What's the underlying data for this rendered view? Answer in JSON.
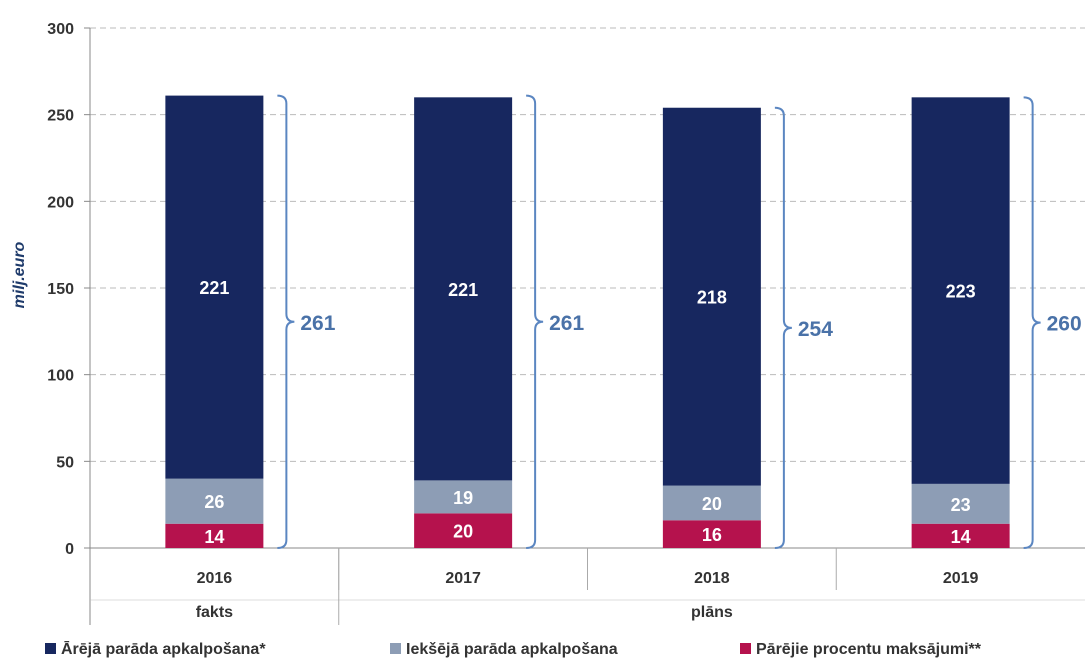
{
  "chart_data": {
    "type": "stacked_bar",
    "y_label": "milj.euro",
    "categories": [
      "2016",
      "2017",
      "2018",
      "2019"
    ],
    "groups": [
      {
        "label": "fakts",
        "count": 1
      },
      {
        "label": "plāns",
        "count": 3
      }
    ],
    "series": [
      {
        "name": "Ārējā parāda apkalpošana*",
        "color": "#17275f",
        "values": [
          221,
          221,
          218,
          223
        ]
      },
      {
        "name": "Iekšējā parāda apkalpošana",
        "color": "#8d9db5",
        "values": [
          26,
          19,
          20,
          23
        ]
      },
      {
        "name": "Pārējie procentu maksājumi**",
        "color": "#b5124d",
        "values": [
          14,
          20,
          16,
          14
        ]
      }
    ],
    "totals": [
      261,
      261,
      254,
      260
    ],
    "ylim": [
      0,
      300
    ],
    "yticks": [
      0,
      50,
      100,
      150,
      200,
      250,
      300
    ],
    "grid": true
  }
}
